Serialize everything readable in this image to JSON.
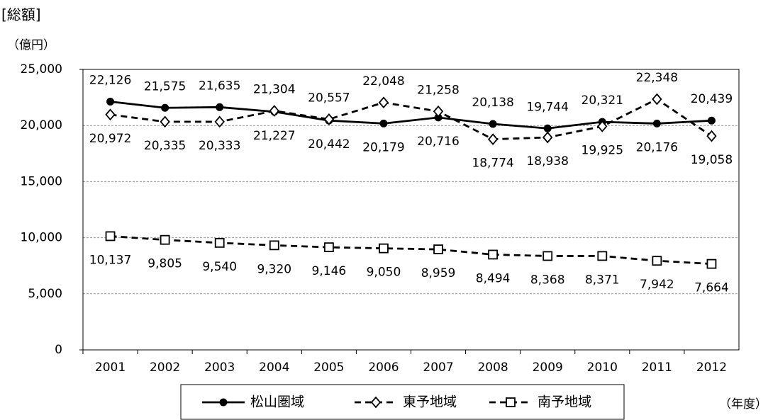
{
  "chart_data": {
    "type": "line",
    "title": "[総額]",
    "y_label": "（億円）",
    "x_label": "（年度）",
    "categories": [
      "2001",
      "2002",
      "2003",
      "2004",
      "2005",
      "2006",
      "2007",
      "2008",
      "2009",
      "2010",
      "2011",
      "2012"
    ],
    "series": [
      {
        "name": "松山圏域",
        "color": "#000000",
        "style": "solid",
        "marker": "circle",
        "values": [
          22126,
          21575,
          21635,
          21227,
          20442,
          20179,
          20716,
          20138,
          19744,
          20321,
          20176,
          20439
        ],
        "value_labels": [
          "22,126",
          "21,575",
          "21,635",
          "21,227",
          "20,442",
          "20,179",
          "20,716",
          "20,138",
          "19,744",
          "20,321",
          "20,176",
          "20,439"
        ]
      },
      {
        "name": "東予地域",
        "color": "#000000",
        "style": "dashed",
        "marker": "diamond",
        "values": [
          20972,
          20335,
          20333,
          21304,
          20557,
          22048,
          21258,
          18774,
          18938,
          19925,
          22348,
          19058
        ],
        "value_labels": [
          "20,972",
          "20,335",
          "20,333",
          "21,304",
          "20,557",
          "22,048",
          "21,258",
          "18,774",
          "18,938",
          "19,925",
          "22,348",
          "19,058"
        ]
      },
      {
        "name": "南予地域",
        "color": "#000000",
        "style": "dashed",
        "marker": "square",
        "values": [
          10137,
          9805,
          9540,
          9320,
          9146,
          9050,
          8959,
          8494,
          8368,
          8371,
          7942,
          7664
        ],
        "value_labels": [
          "10,137",
          "9,805",
          "9,540",
          "9,320",
          "9,146",
          "9,050",
          "8,959",
          "8,494",
          "8,368",
          "8,371",
          "7,942",
          "7,664"
        ]
      }
    ],
    "ylim": [
      0,
      25000
    ],
    "yticks": [
      0,
      {
        "value": 5000,
        "label": "5,000"
      },
      {
        "value": 10000,
        "label": "10,000"
      },
      {
        "value": 15000,
        "label": "15,000"
      },
      {
        "value": 20000,
        "label": "20,000"
      },
      {
        "value": 25000,
        "label": "25,000"
      }
    ],
    "grid": true
  }
}
